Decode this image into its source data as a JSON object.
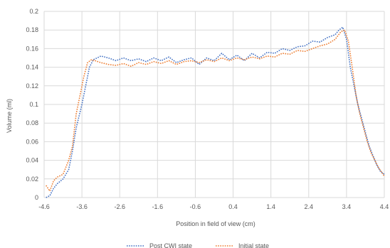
{
  "chart_data": {
    "type": "line",
    "title": "",
    "xlabel": "Position in field of view (cm)",
    "ylabel": "Volume (ml)",
    "xlim": [
      -4.6,
      4.4
    ],
    "ylim": [
      0,
      0.2
    ],
    "x_tick_labels": [
      "-4.6",
      "-3.6",
      "-2.6",
      "-1.6",
      "-0.6",
      "0.4",
      "1.4",
      "2.4",
      "3.4",
      "4.4"
    ],
    "y_tick_labels": [
      "0",
      "0.02",
      "0.04",
      "0.06",
      "0.08",
      "0.1",
      "0.12",
      "0.14",
      "0.16",
      "0.18",
      "0.2"
    ],
    "grid": true,
    "legend_position": "bottom",
    "series": [
      {
        "name": "Post CWI state",
        "color": "#4472C4",
        "line_style": "dotted",
        "x": [
          -4.55,
          -4.45,
          -4.35,
          -4.25,
          -4.1,
          -3.95,
          -3.85,
          -3.75,
          -3.6,
          -3.5,
          -3.4,
          -3.3,
          -3.2,
          -3.1,
          -2.9,
          -2.7,
          -2.5,
          -2.3,
          -2.1,
          -1.9,
          -1.7,
          -1.5,
          -1.3,
          -1.1,
          -0.9,
          -0.7,
          -0.5,
          -0.3,
          -0.1,
          0.1,
          0.3,
          0.5,
          0.7,
          0.9,
          1.1,
          1.3,
          1.5,
          1.7,
          1.9,
          2.1,
          2.3,
          2.5,
          2.7,
          2.9,
          3.1,
          3.2,
          3.3,
          3.4,
          3.5,
          3.6,
          3.7,
          3.8,
          3.9,
          4.0,
          4.1,
          4.2,
          4.3,
          4.4
        ],
        "y": [
          0.0,
          0.002,
          0.01,
          0.015,
          0.02,
          0.03,
          0.05,
          0.075,
          0.1,
          0.12,
          0.14,
          0.148,
          0.15,
          0.152,
          0.15,
          0.147,
          0.15,
          0.147,
          0.149,
          0.146,
          0.15,
          0.147,
          0.151,
          0.145,
          0.148,
          0.15,
          0.143,
          0.15,
          0.147,
          0.155,
          0.148,
          0.153,
          0.147,
          0.155,
          0.15,
          0.156,
          0.155,
          0.16,
          0.158,
          0.162,
          0.163,
          0.168,
          0.167,
          0.172,
          0.175,
          0.18,
          0.183,
          0.17,
          0.14,
          0.12,
          0.1,
          0.085,
          0.07,
          0.055,
          0.045,
          0.035,
          0.028,
          0.025
        ]
      },
      {
        "name": "Initial state",
        "color": "#ED7D31",
        "line_style": "dotted",
        "x": [
          -4.55,
          -4.45,
          -4.35,
          -4.25,
          -4.1,
          -3.95,
          -3.85,
          -3.75,
          -3.65,
          -3.55,
          -3.45,
          -3.35,
          -3.25,
          -3.1,
          -2.9,
          -2.7,
          -2.5,
          -2.3,
          -2.1,
          -1.9,
          -1.7,
          -1.5,
          -1.3,
          -1.1,
          -0.9,
          -0.7,
          -0.5,
          -0.3,
          -0.1,
          0.1,
          0.3,
          0.5,
          0.7,
          0.9,
          1.1,
          1.3,
          1.5,
          1.7,
          1.9,
          2.1,
          2.3,
          2.5,
          2.7,
          2.9,
          3.1,
          3.25,
          3.35,
          3.45,
          3.55,
          3.65,
          3.75,
          3.85,
          3.95,
          4.05,
          4.15,
          4.25,
          4.35,
          4.4
        ],
        "y": [
          0.013,
          0.007,
          0.018,
          0.022,
          0.025,
          0.04,
          0.055,
          0.09,
          0.11,
          0.13,
          0.145,
          0.148,
          0.147,
          0.145,
          0.143,
          0.142,
          0.144,
          0.141,
          0.145,
          0.143,
          0.146,
          0.144,
          0.147,
          0.143,
          0.146,
          0.147,
          0.145,
          0.148,
          0.146,
          0.15,
          0.147,
          0.15,
          0.148,
          0.151,
          0.149,
          0.152,
          0.151,
          0.155,
          0.154,
          0.158,
          0.157,
          0.16,
          0.163,
          0.165,
          0.17,
          0.178,
          0.18,
          0.168,
          0.14,
          0.11,
          0.09,
          0.075,
          0.06,
          0.048,
          0.04,
          0.032,
          0.026,
          0.023
        ]
      }
    ]
  }
}
